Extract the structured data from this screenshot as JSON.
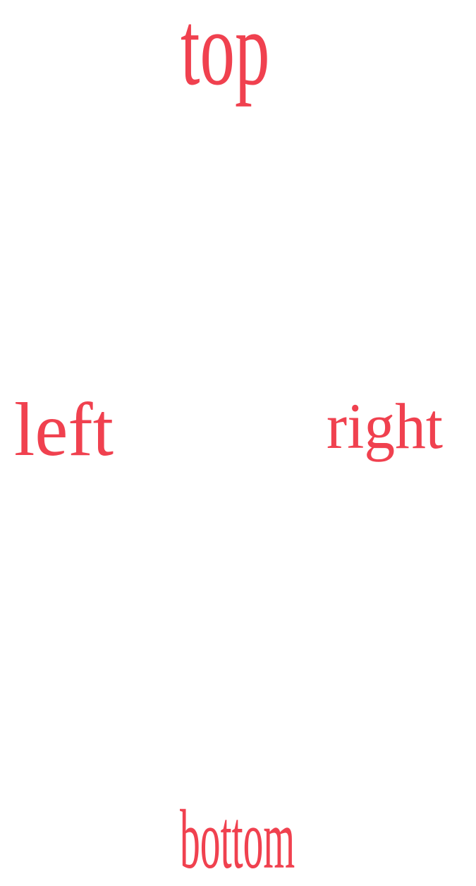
{
  "labels": {
    "top": "top",
    "left": "left",
    "right": "right",
    "bottom": "bottom"
  },
  "colors": {
    "text": "#f0414f",
    "background": "#ffffff"
  }
}
